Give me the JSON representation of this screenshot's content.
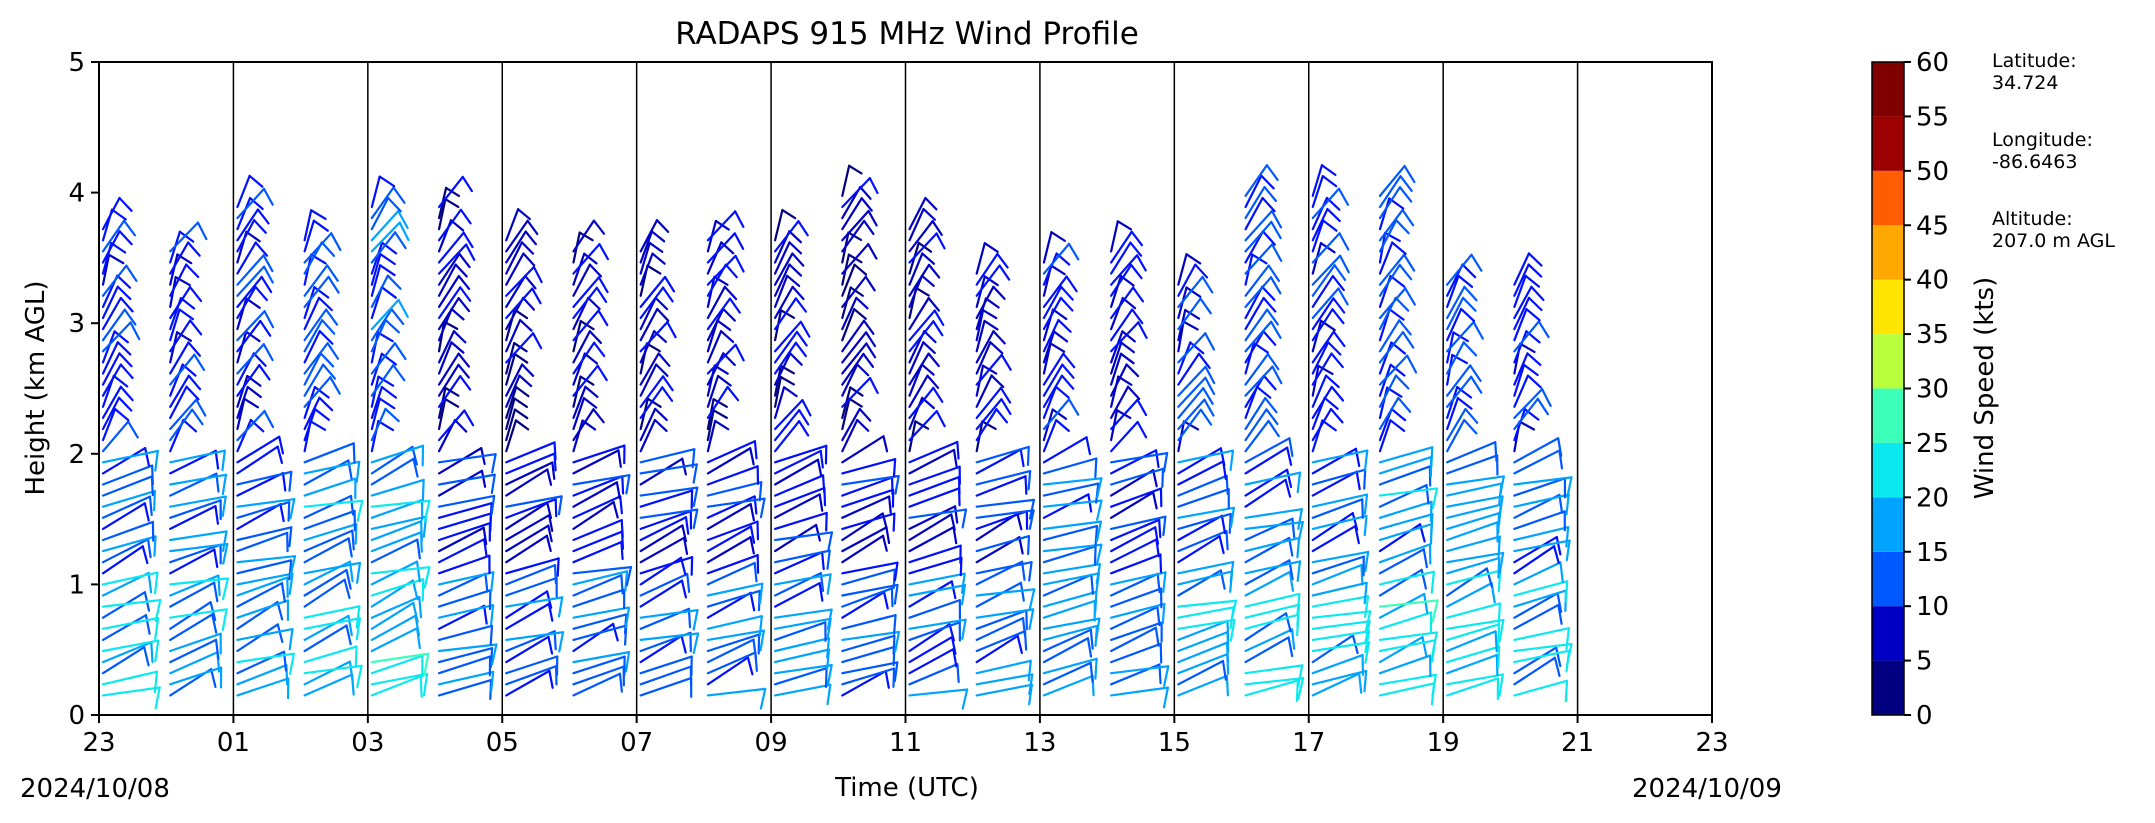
{
  "chart_data": {
    "type": "wind_barb_profile",
    "title": "RADAPS 915 MHz Wind Profile",
    "xlabel": "Time (UTC)",
    "ylabel": "Height (km AGL)",
    "ylim": [
      0,
      5
    ],
    "y_ticks": [
      "0",
      "1",
      "2",
      "3",
      "4",
      "5"
    ],
    "x_ticks": [
      "23",
      "01",
      "03",
      "05",
      "07",
      "09",
      "11",
      "13",
      "15",
      "17",
      "19",
      "21",
      "23"
    ],
    "xlim_hours": [
      0,
      24
    ],
    "start_date": "2024/10/08",
    "end_date": "2024/10/09",
    "colorbar": {
      "label": "Wind Speed (kts)",
      "ticks": [
        "0",
        "5",
        "10",
        "15",
        "20",
        "25",
        "30",
        "35",
        "40",
        "45",
        "50",
        "55",
        "60"
      ],
      "colors": [
        "#000080",
        "#0000c4",
        "#0010ff",
        "#0058ff",
        "#00a4ff",
        "#0ce8f0",
        "#3cffba",
        "#7eff7a",
        "#baff3c",
        "#ffe500",
        "#ffa800",
        "#ff5d00",
        "#f21000",
        "#9c0000",
        "#800000"
      ]
    },
    "profiles": [
      {
        "t": 0.0,
        "top": 3.8,
        "speed": 16
      },
      {
        "t": 1.0,
        "top": 3.6,
        "speed": 15
      },
      {
        "t": 2.0,
        "top": 3.9,
        "speed": 14
      },
      {
        "t": 3.0,
        "top": 3.7,
        "speed": 17
      },
      {
        "t": 4.0,
        "top": 3.9,
        "speed": 18
      },
      {
        "t": 5.0,
        "top": 3.9,
        "speed": 11
      },
      {
        "t": 6.0,
        "top": 3.7,
        "speed": 10
      },
      {
        "t": 7.0,
        "top": 3.6,
        "speed": 11
      },
      {
        "t": 8.0,
        "top": 3.6,
        "speed": 11
      },
      {
        "t": 9.0,
        "top": 3.7,
        "speed": 12
      },
      {
        "t": 10.0,
        "top": 3.7,
        "speed": 11
      },
      {
        "t": 11.0,
        "top": 4.0,
        "speed": 9
      },
      {
        "t": 12.0,
        "top": 3.8,
        "speed": 10
      },
      {
        "t": 13.0,
        "top": 3.4,
        "speed": 12
      },
      {
        "t": 14.0,
        "top": 3.5,
        "speed": 14
      },
      {
        "t": 15.0,
        "top": 3.6,
        "speed": 12
      },
      {
        "t": 16.0,
        "top": 3.3,
        "speed": 15
      },
      {
        "t": 17.0,
        "top": 4.0,
        "speed": 16
      },
      {
        "t": 18.0,
        "top": 4.0,
        "speed": 15
      },
      {
        "t": 19.0,
        "top": 4.0,
        "speed": 17
      },
      {
        "t": 20.0,
        "top": 3.3,
        "speed": 17
      },
      {
        "t": 21.0,
        "top": 3.3,
        "speed": 16
      }
    ]
  },
  "station": {
    "latitude_label": "Latitude:",
    "latitude_value": "34.724",
    "longitude_label": "Longitude:",
    "longitude_value": "-86.6463",
    "altitude_label": "Altitude:",
    "altitude_value": "207.0 m AGL"
  }
}
